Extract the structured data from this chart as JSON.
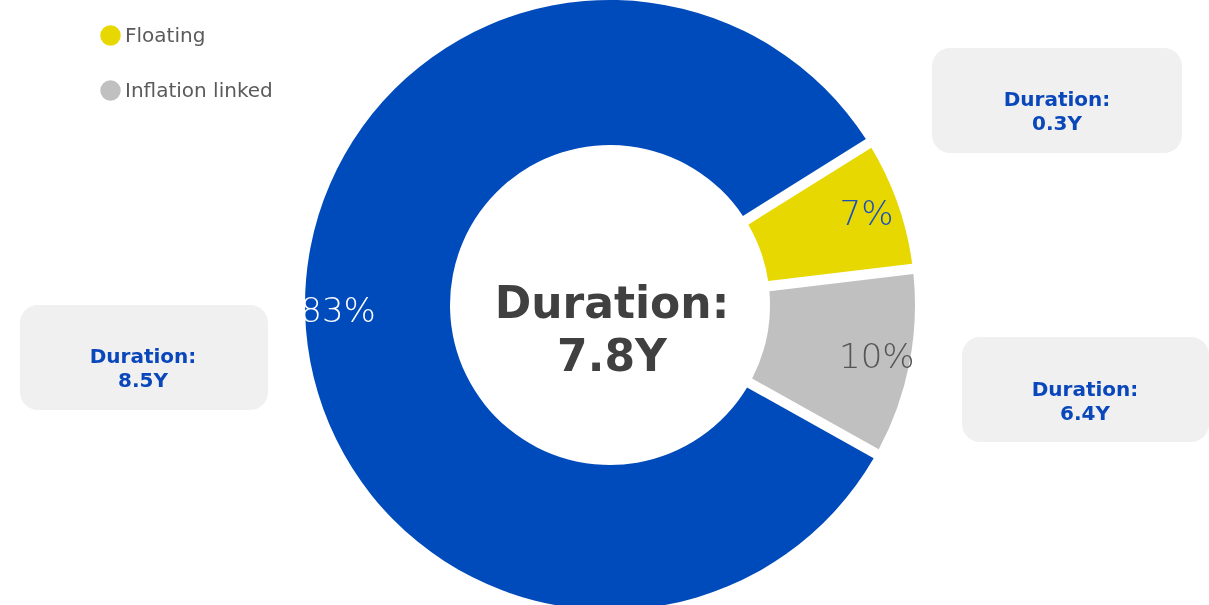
{
  "chart_data": {
    "type": "donut",
    "categories": [
      null,
      "Floating",
      "Inflation linked"
    ],
    "values": [
      83,
      7,
      10
    ],
    "colors": [
      "#004bbb",
      "#e6d800",
      "#c0c0c0"
    ],
    "value_labels": [
      "83%",
      "7%",
      "10%"
    ],
    "legend": "top left",
    "annotations": [
      "Duration:\n7.8Y",
      "Duration:\n0.3Y",
      "Duration:\n8.5Y",
      "Duration:\n6.4Y"
    ]
  }
}
